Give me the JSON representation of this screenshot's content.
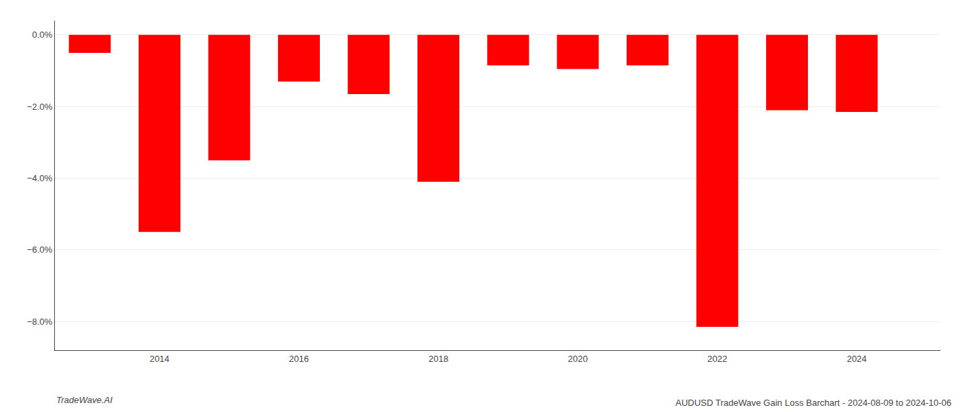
{
  "chart_data": {
    "type": "bar",
    "title": "AUDUSD TradeWave Gain Loss Barchart - 2024-08-09 to 2024-10-06",
    "annotations": [
      "TradeWave.AI"
    ],
    "x": [
      2013,
      2014,
      2015,
      2016,
      2017,
      2018,
      2019,
      2020,
      2021,
      2022,
      2023,
      2024
    ],
    "values": [
      -0.5,
      -5.5,
      -3.5,
      -1.3,
      -1.65,
      -4.1,
      -0.85,
      -0.95,
      -0.85,
      -8.15,
      -2.1,
      -2.15
    ],
    "color": "#ff0000",
    "xlim": [
      2012.5,
      2025.2
    ],
    "xticks": [
      2014,
      2016,
      2018,
      2020,
      2022,
      2024
    ],
    "ylim": [
      -8.8,
      0.4
    ],
    "yticks": [
      {
        "value": 0.0,
        "label": "0.0%"
      },
      {
        "value": -2.0,
        "label": "−2.0%"
      },
      {
        "value": -4.0,
        "label": "−4.0%"
      },
      {
        "value": -6.0,
        "label": "−6.0%"
      },
      {
        "value": -8.0,
        "label": "−8.0%"
      }
    ],
    "grid": true
  }
}
